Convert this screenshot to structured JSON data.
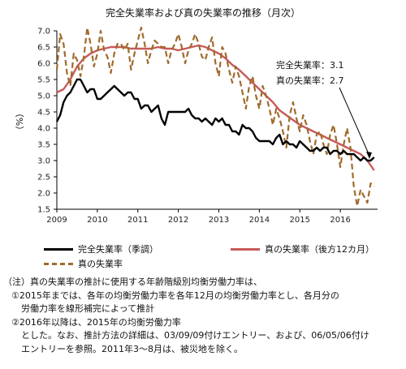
{
  "chart_data": {
    "type": "line",
    "title": "完全失業率および真の失業率の推移（月次）",
    "ylabel": "（%）",
    "ylim": [
      1.5,
      7.0
    ],
    "yticks": [
      "1.5",
      "2.0",
      "2.5",
      "3.0",
      "3.5",
      "4.0",
      "4.5",
      "5.0",
      "5.5",
      "6.0",
      "6.5",
      "7.0"
    ],
    "xlim": [
      2009.0,
      2016.92
    ],
    "xticks": [
      "2009",
      "2010",
      "2011",
      "2012",
      "2013",
      "2014",
      "2015",
      "2016"
    ],
    "grid": false,
    "legend_position": "bottom",
    "series": [
      {
        "name": "完全失業率（季調）",
        "style": "solid",
        "color": "#000000",
        "points": [
          [
            2009.0,
            4.2
          ],
          [
            2009.083,
            4.4
          ],
          [
            2009.167,
            4.8
          ],
          [
            2009.25,
            5.0
          ],
          [
            2009.333,
            5.1
          ],
          [
            2009.417,
            5.3
          ],
          [
            2009.5,
            5.5
          ],
          [
            2009.583,
            5.5
          ],
          [
            2009.667,
            5.3
          ],
          [
            2009.75,
            5.1
          ],
          [
            2009.833,
            5.2
          ],
          [
            2009.917,
            5.2
          ],
          [
            2010.0,
            4.9
          ],
          [
            2010.083,
            4.9
          ],
          [
            2010.167,
            5.0
          ],
          [
            2010.25,
            5.1
          ],
          [
            2010.333,
            5.2
          ],
          [
            2010.417,
            5.3
          ],
          [
            2010.5,
            5.2
          ],
          [
            2010.583,
            5.1
          ],
          [
            2010.667,
            5.0
          ],
          [
            2010.75,
            5.1
          ],
          [
            2010.833,
            5.1
          ],
          [
            2010.917,
            4.9
          ],
          [
            2011.0,
            4.9
          ],
          [
            2011.083,
            4.6
          ],
          [
            2011.167,
            4.7
          ],
          [
            2011.25,
            4.7
          ],
          [
            2011.333,
            4.5
          ],
          [
            2011.417,
            4.6
          ],
          [
            2011.5,
            4.7
          ],
          [
            2011.583,
            4.3
          ],
          [
            2011.667,
            4.1
          ],
          [
            2011.75,
            4.5
          ],
          [
            2011.833,
            4.5
          ],
          [
            2011.917,
            4.5
          ],
          [
            2012.0,
            4.5
          ],
          [
            2012.083,
            4.5
          ],
          [
            2012.167,
            4.5
          ],
          [
            2012.25,
            4.6
          ],
          [
            2012.333,
            4.4
          ],
          [
            2012.417,
            4.3
          ],
          [
            2012.5,
            4.3
          ],
          [
            2012.583,
            4.2
          ],
          [
            2012.667,
            4.3
          ],
          [
            2012.75,
            4.2
          ],
          [
            2012.833,
            4.1
          ],
          [
            2012.917,
            4.3
          ],
          [
            2013.0,
            4.2
          ],
          [
            2013.083,
            4.3
          ],
          [
            2013.167,
            4.1
          ],
          [
            2013.25,
            4.1
          ],
          [
            2013.333,
            3.9
          ],
          [
            2013.417,
            3.9
          ],
          [
            2013.5,
            3.8
          ],
          [
            2013.583,
            4.1
          ],
          [
            2013.667,
            4.0
          ],
          [
            2013.75,
            4.0
          ],
          [
            2013.833,
            3.9
          ],
          [
            2013.917,
            3.7
          ],
          [
            2014.0,
            3.6
          ],
          [
            2014.083,
            3.6
          ],
          [
            2014.167,
            3.6
          ],
          [
            2014.25,
            3.6
          ],
          [
            2014.333,
            3.5
          ],
          [
            2014.417,
            3.7
          ],
          [
            2014.5,
            3.8
          ],
          [
            2014.583,
            3.5
          ],
          [
            2014.667,
            3.6
          ],
          [
            2014.75,
            3.5
          ],
          [
            2014.833,
            3.5
          ],
          [
            2014.917,
            3.4
          ],
          [
            2015.0,
            3.6
          ],
          [
            2015.083,
            3.5
          ],
          [
            2015.167,
            3.4
          ],
          [
            2015.25,
            3.3
          ],
          [
            2015.333,
            3.3
          ],
          [
            2015.417,
            3.4
          ],
          [
            2015.5,
            3.3
          ],
          [
            2015.583,
            3.4
          ],
          [
            2015.667,
            3.4
          ],
          [
            2015.75,
            3.2
          ],
          [
            2015.833,
            3.3
          ],
          [
            2015.917,
            3.3
          ],
          [
            2016.0,
            3.2
          ],
          [
            2016.083,
            3.3
          ],
          [
            2016.167,
            3.2
          ],
          [
            2016.25,
            3.2
          ],
          [
            2016.333,
            3.2
          ],
          [
            2016.417,
            3.1
          ],
          [
            2016.5,
            3.0
          ],
          [
            2016.583,
            3.1
          ],
          [
            2016.667,
            3.0
          ],
          [
            2016.75,
            3.0
          ],
          [
            2016.833,
            3.1
          ]
        ]
      },
      {
        "name": "真の失業率（後方12カ月）",
        "style": "solid",
        "color": "#c85a5a",
        "points": [
          [
            2009.0,
            5.1
          ],
          [
            2009.167,
            5.2
          ],
          [
            2009.333,
            5.5
          ],
          [
            2009.5,
            5.9
          ],
          [
            2009.667,
            6.15
          ],
          [
            2009.833,
            6.3
          ],
          [
            2010.0,
            6.4
          ],
          [
            2010.167,
            6.45
          ],
          [
            2010.333,
            6.5
          ],
          [
            2010.5,
            6.5
          ],
          [
            2010.667,
            6.5
          ],
          [
            2010.833,
            6.45
          ],
          [
            2011.0,
            6.45
          ],
          [
            2011.167,
            6.45
          ],
          [
            2011.333,
            6.45
          ],
          [
            2011.5,
            6.5
          ],
          [
            2011.667,
            6.45
          ],
          [
            2011.833,
            6.45
          ],
          [
            2012.0,
            6.4
          ],
          [
            2012.167,
            6.45
          ],
          [
            2012.333,
            6.5
          ],
          [
            2012.5,
            6.55
          ],
          [
            2012.667,
            6.5
          ],
          [
            2012.833,
            6.4
          ],
          [
            2013.0,
            6.3
          ],
          [
            2013.167,
            6.15
          ],
          [
            2013.333,
            5.95
          ],
          [
            2013.5,
            5.8
          ],
          [
            2013.667,
            5.6
          ],
          [
            2013.833,
            5.4
          ],
          [
            2014.0,
            5.2
          ],
          [
            2014.167,
            5.0
          ],
          [
            2014.333,
            4.8
          ],
          [
            2014.5,
            4.55
          ],
          [
            2014.667,
            4.4
          ],
          [
            2014.833,
            4.25
          ],
          [
            2015.0,
            4.1
          ],
          [
            2015.167,
            4.0
          ],
          [
            2015.333,
            3.9
          ],
          [
            2015.5,
            3.8
          ],
          [
            2015.667,
            3.7
          ],
          [
            2015.833,
            3.6
          ],
          [
            2016.0,
            3.5
          ],
          [
            2016.167,
            3.4
          ],
          [
            2016.333,
            3.3
          ],
          [
            2016.5,
            3.2
          ],
          [
            2016.667,
            3.0
          ],
          [
            2016.833,
            2.7
          ]
        ]
      },
      {
        "name": "真の失業率",
        "style": "dashed",
        "color": "#a06a2c",
        "points": [
          [
            2009.0,
            5.8
          ],
          [
            2009.083,
            6.9
          ],
          [
            2009.167,
            6.6
          ],
          [
            2009.25,
            5.7
          ],
          [
            2009.333,
            5.3
          ],
          [
            2009.417,
            6.3
          ],
          [
            2009.5,
            6.1
          ],
          [
            2009.583,
            5.6
          ],
          [
            2009.667,
            6.2
          ],
          [
            2009.75,
            7.1
          ],
          [
            2009.833,
            6.6
          ],
          [
            2009.917,
            5.9
          ],
          [
            2010.0,
            6.3
          ],
          [
            2010.083,
            7.0
          ],
          [
            2010.167,
            6.4
          ],
          [
            2010.25,
            6.2
          ],
          [
            2010.333,
            5.7
          ],
          [
            2010.417,
            6.3
          ],
          [
            2010.5,
            6.6
          ],
          [
            2010.583,
            6.6
          ],
          [
            2010.667,
            6.4
          ],
          [
            2010.75,
            6.6
          ],
          [
            2010.833,
            5.8
          ],
          [
            2010.917,
            6.3
          ],
          [
            2011.0,
            6.7
          ],
          [
            2011.083,
            7.1
          ],
          [
            2011.167,
            6.6
          ],
          [
            2011.25,
            6.0
          ],
          [
            2011.333,
            6.4
          ],
          [
            2011.417,
            6.7
          ],
          [
            2011.5,
            6.6
          ],
          [
            2011.583,
            6.5
          ],
          [
            2011.667,
            6.5
          ],
          [
            2011.75,
            6.0
          ],
          [
            2011.833,
            6.4
          ],
          [
            2011.917,
            6.6
          ],
          [
            2012.0,
            6.9
          ],
          [
            2012.083,
            6.5
          ],
          [
            2012.167,
            6.0
          ],
          [
            2012.25,
            6.4
          ],
          [
            2012.333,
            6.6
          ],
          [
            2012.417,
            6.9
          ],
          [
            2012.5,
            6.6
          ],
          [
            2012.583,
            6.2
          ],
          [
            2012.667,
            6.1
          ],
          [
            2012.75,
            6.5
          ],
          [
            2012.833,
            6.8
          ],
          [
            2012.917,
            6.0
          ],
          [
            2013.0,
            5.6
          ],
          [
            2013.083,
            6.5
          ],
          [
            2013.167,
            6.3
          ],
          [
            2013.25,
            5.8
          ],
          [
            2013.333,
            5.4
          ],
          [
            2013.417,
            5.9
          ],
          [
            2013.5,
            5.6
          ],
          [
            2013.583,
            5.1
          ],
          [
            2013.667,
            4.6
          ],
          [
            2013.75,
            5.3
          ],
          [
            2013.833,
            5.6
          ],
          [
            2013.917,
            5.0
          ],
          [
            2014.0,
            4.6
          ],
          [
            2014.083,
            5.3
          ],
          [
            2014.167,
            5.0
          ],
          [
            2014.25,
            4.6
          ],
          [
            2014.333,
            4.1
          ],
          [
            2014.417,
            4.6
          ],
          [
            2014.5,
            4.3
          ],
          [
            2014.583,
            3.9
          ],
          [
            2014.667,
            3.4
          ],
          [
            2014.75,
            4.4
          ],
          [
            2014.833,
            4.8
          ],
          [
            2014.917,
            4.3
          ],
          [
            2015.0,
            3.9
          ],
          [
            2015.083,
            4.4
          ],
          [
            2015.167,
            4.1
          ],
          [
            2015.25,
            3.6
          ],
          [
            2015.333,
            3.2
          ],
          [
            2015.417,
            3.8
          ],
          [
            2015.5,
            3.9
          ],
          [
            2015.583,
            3.5
          ],
          [
            2015.667,
            3.2
          ],
          [
            2015.75,
            3.8
          ],
          [
            2015.833,
            4.1
          ],
          [
            2015.917,
            3.5
          ],
          [
            2016.0,
            2.8
          ],
          [
            2016.083,
            3.5
          ],
          [
            2016.167,
            4.0
          ],
          [
            2016.25,
            3.4
          ],
          [
            2016.333,
            2.2
          ],
          [
            2016.417,
            1.6
          ],
          [
            2016.5,
            2.1
          ],
          [
            2016.583,
            1.9
          ],
          [
            2016.667,
            1.7
          ],
          [
            2016.75,
            2.3
          ],
          [
            2016.833,
            2.2
          ]
        ]
      }
    ],
    "annotations": [
      {
        "text": "完全失業率：3.1"
      },
      {
        "text": "真の失業率：2.7"
      }
    ]
  },
  "notes": {
    "line1": "（注）真の失業率の推計に使用する年齢階級別均衡労働力率は、",
    "line2": "①2015年までは、各年の均衡労働力率を各年12月の均衡労働力率とし、各月分の",
    "line3": "労働力率を線形補完によって推計",
    "line4": "②2016年以降は、2015年の均衡労働力率",
    "line5": "とした。なお、推計方法の詳細は、03/09/09付けエントリー、および、06/05/06付け",
    "line6": "エントリーを参照。2011年3〜8月は、被災地を除く。"
  }
}
